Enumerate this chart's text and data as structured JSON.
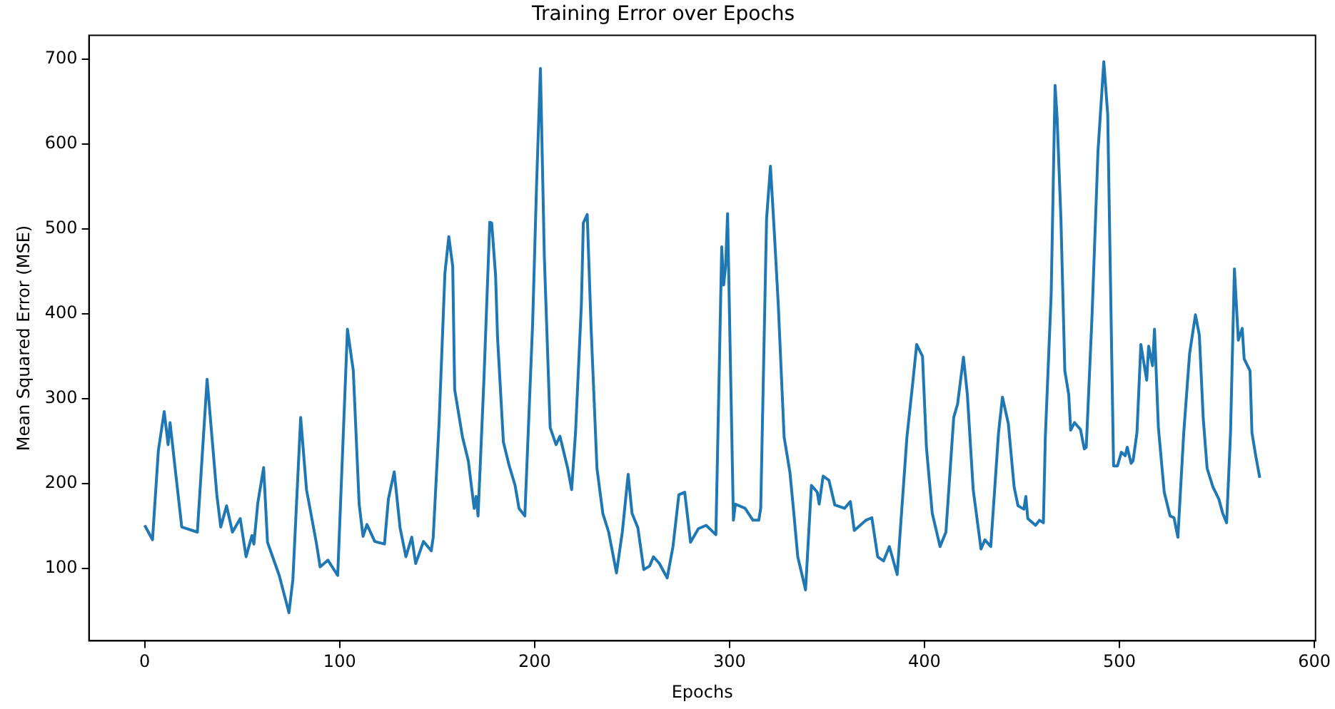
{
  "chart_data": {
    "type": "line",
    "title": "Training Error over Epochs",
    "xlabel": "Epochs",
    "ylabel": "Mean Squared Error (MSE)",
    "x": [
      0,
      4,
      7,
      10,
      12,
      13,
      16,
      19,
      27,
      32,
      37,
      39,
      42,
      45,
      49,
      52,
      55,
      56,
      58,
      61,
      63,
      69,
      74,
      76,
      80,
      83,
      88,
      90,
      94,
      99,
      104,
      107,
      110,
      112,
      114,
      118,
      123,
      125,
      128,
      131,
      134,
      137,
      139,
      143,
      147,
      148,
      151,
      154,
      156,
      158,
      159,
      163,
      166,
      169,
      170,
      171,
      174,
      177,
      178,
      180,
      181,
      184,
      187,
      190,
      192,
      195,
      199,
      201,
      203,
      205,
      208,
      211,
      213,
      217,
      219,
      221,
      224,
      225,
      227,
      229,
      232,
      235,
      238,
      242,
      245,
      248,
      250,
      253,
      256,
      259,
      261,
      264,
      268,
      271,
      274,
      277,
      280,
      284,
      288,
      293,
      296,
      297,
      298,
      299,
      302,
      303,
      308,
      312,
      315,
      316,
      319,
      321,
      323,
      325,
      328,
      331,
      333,
      335,
      339,
      342,
      345,
      346,
      348,
      351,
      354,
      359,
      362,
      364,
      370,
      373,
      376,
      379,
      382,
      386,
      391,
      394,
      396,
      399,
      401,
      404,
      408,
      411,
      415,
      417,
      420,
      422,
      425,
      429,
      431,
      434,
      438,
      440,
      443,
      446,
      448,
      451,
      452,
      453,
      457,
      459,
      461,
      462,
      465,
      467,
      468,
      470,
      472,
      474,
      475,
      477,
      480,
      482,
      483,
      486,
      489,
      492,
      494,
      497,
      499,
      501,
      503,
      504,
      506,
      507,
      509,
      511,
      514,
      515,
      517,
      518,
      520,
      523,
      526,
      528,
      530,
      533,
      536,
      539,
      541,
      543,
      545,
      548,
      551,
      553,
      555,
      557,
      559,
      561,
      563,
      564,
      567,
      568,
      570,
      572
    ],
    "values": [
      151,
      134,
      239,
      285,
      246,
      272,
      210,
      149,
      143,
      323,
      187,
      149,
      174,
      143,
      159,
      114,
      139,
      129,
      177,
      219,
      131,
      92,
      48,
      87,
      278,
      193,
      131,
      102,
      110,
      92,
      382,
      333,
      176,
      138,
      152,
      132,
      129,
      182,
      214,
      148,
      114,
      137,
      106,
      132,
      121,
      137,
      271,
      448,
      491,
      456,
      311,
      255,
      227,
      171,
      185,
      162,
      322,
      508,
      507,
      445,
      372,
      249,
      221,
      198,
      171,
      162,
      389,
      551,
      689,
      467,
      266,
      246,
      256,
      218,
      193,
      260,
      411,
      507,
      517,
      383,
      218,
      165,
      143,
      95,
      143,
      211,
      165,
      148,
      99,
      103,
      114,
      106,
      89,
      126,
      187,
      190,
      131,
      147,
      151,
      140,
      479,
      434,
      457,
      518,
      157,
      176,
      171,
      157,
      157,
      171,
      512,
      574,
      495,
      411,
      255,
      213,
      165,
      114,
      75,
      198,
      190,
      176,
      209,
      204,
      175,
      171,
      179,
      145,
      157,
      160,
      114,
      109,
      126,
      93,
      255,
      319,
      364,
      350,
      243,
      165,
      126,
      143,
      278,
      294,
      349,
      305,
      193,
      123,
      134,
      126,
      260,
      302,
      271,
      196,
      174,
      170,
      185,
      159,
      151,
      157,
      154,
      255,
      423,
      669,
      633,
      512,
      333,
      305,
      263,
      272,
      264,
      241,
      243,
      400,
      591,
      697,
      635,
      221,
      221,
      237,
      233,
      243,
      224,
      227,
      260,
      364,
      322,
      362,
      339,
      382,
      266,
      190,
      162,
      160,
      137,
      260,
      353,
      399,
      375,
      277,
      218,
      196,
      182,
      165,
      154,
      260,
      453,
      369,
      383,
      347,
      333,
      260,
      232,
      207
    ],
    "color": "#1f77b4",
    "line_style": "solid",
    "marker": "none",
    "grid": false,
    "legend": false,
    "xlim": [
      -28.6,
      600.6
    ],
    "xticks": [
      0,
      100,
      200,
      300,
      400,
      500,
      600
    ],
    "ylim": [
      15,
      728
    ],
    "yticks": [
      100,
      200,
      300,
      400,
      500,
      600,
      700
    ]
  }
}
